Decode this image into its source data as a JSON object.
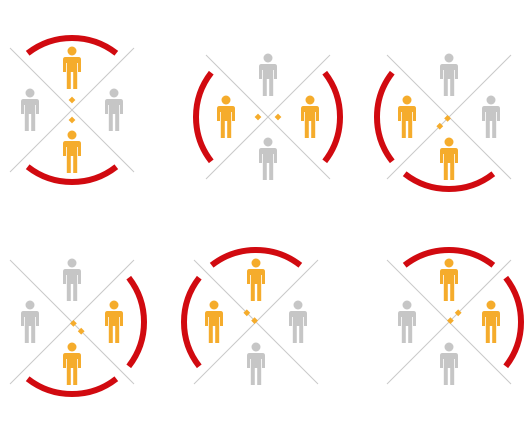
{
  "colors": {
    "background": "#ffffff",
    "arc": "#d10a10",
    "highlight": "#f5ac2c",
    "person_gray": "#c6c6c6",
    "line": "#c9c9c9",
    "dot": "#f5ac2c"
  },
  "icons": {
    "person": "person-icon",
    "diamond": "diamond-dot-icon",
    "arc": "red-arc"
  },
  "pairing_diagrams": [
    {
      "highlighted": [
        "top",
        "bottom"
      ],
      "arcs": [
        "top",
        "bottom"
      ]
    },
    {
      "highlighted": [
        "left",
        "right"
      ],
      "arcs": [
        "left",
        "right"
      ]
    },
    {
      "highlighted": [
        "left",
        "bottom"
      ],
      "arcs": [
        "left",
        "bottom"
      ]
    },
    {
      "highlighted": [
        "right",
        "bottom"
      ],
      "arcs": [
        "right",
        "bottom"
      ]
    },
    {
      "highlighted": [
        "top",
        "left"
      ],
      "arcs": [
        "top",
        "left"
      ]
    },
    {
      "highlighted": [
        "top",
        "right"
      ],
      "arcs": [
        "top",
        "right"
      ]
    }
  ]
}
